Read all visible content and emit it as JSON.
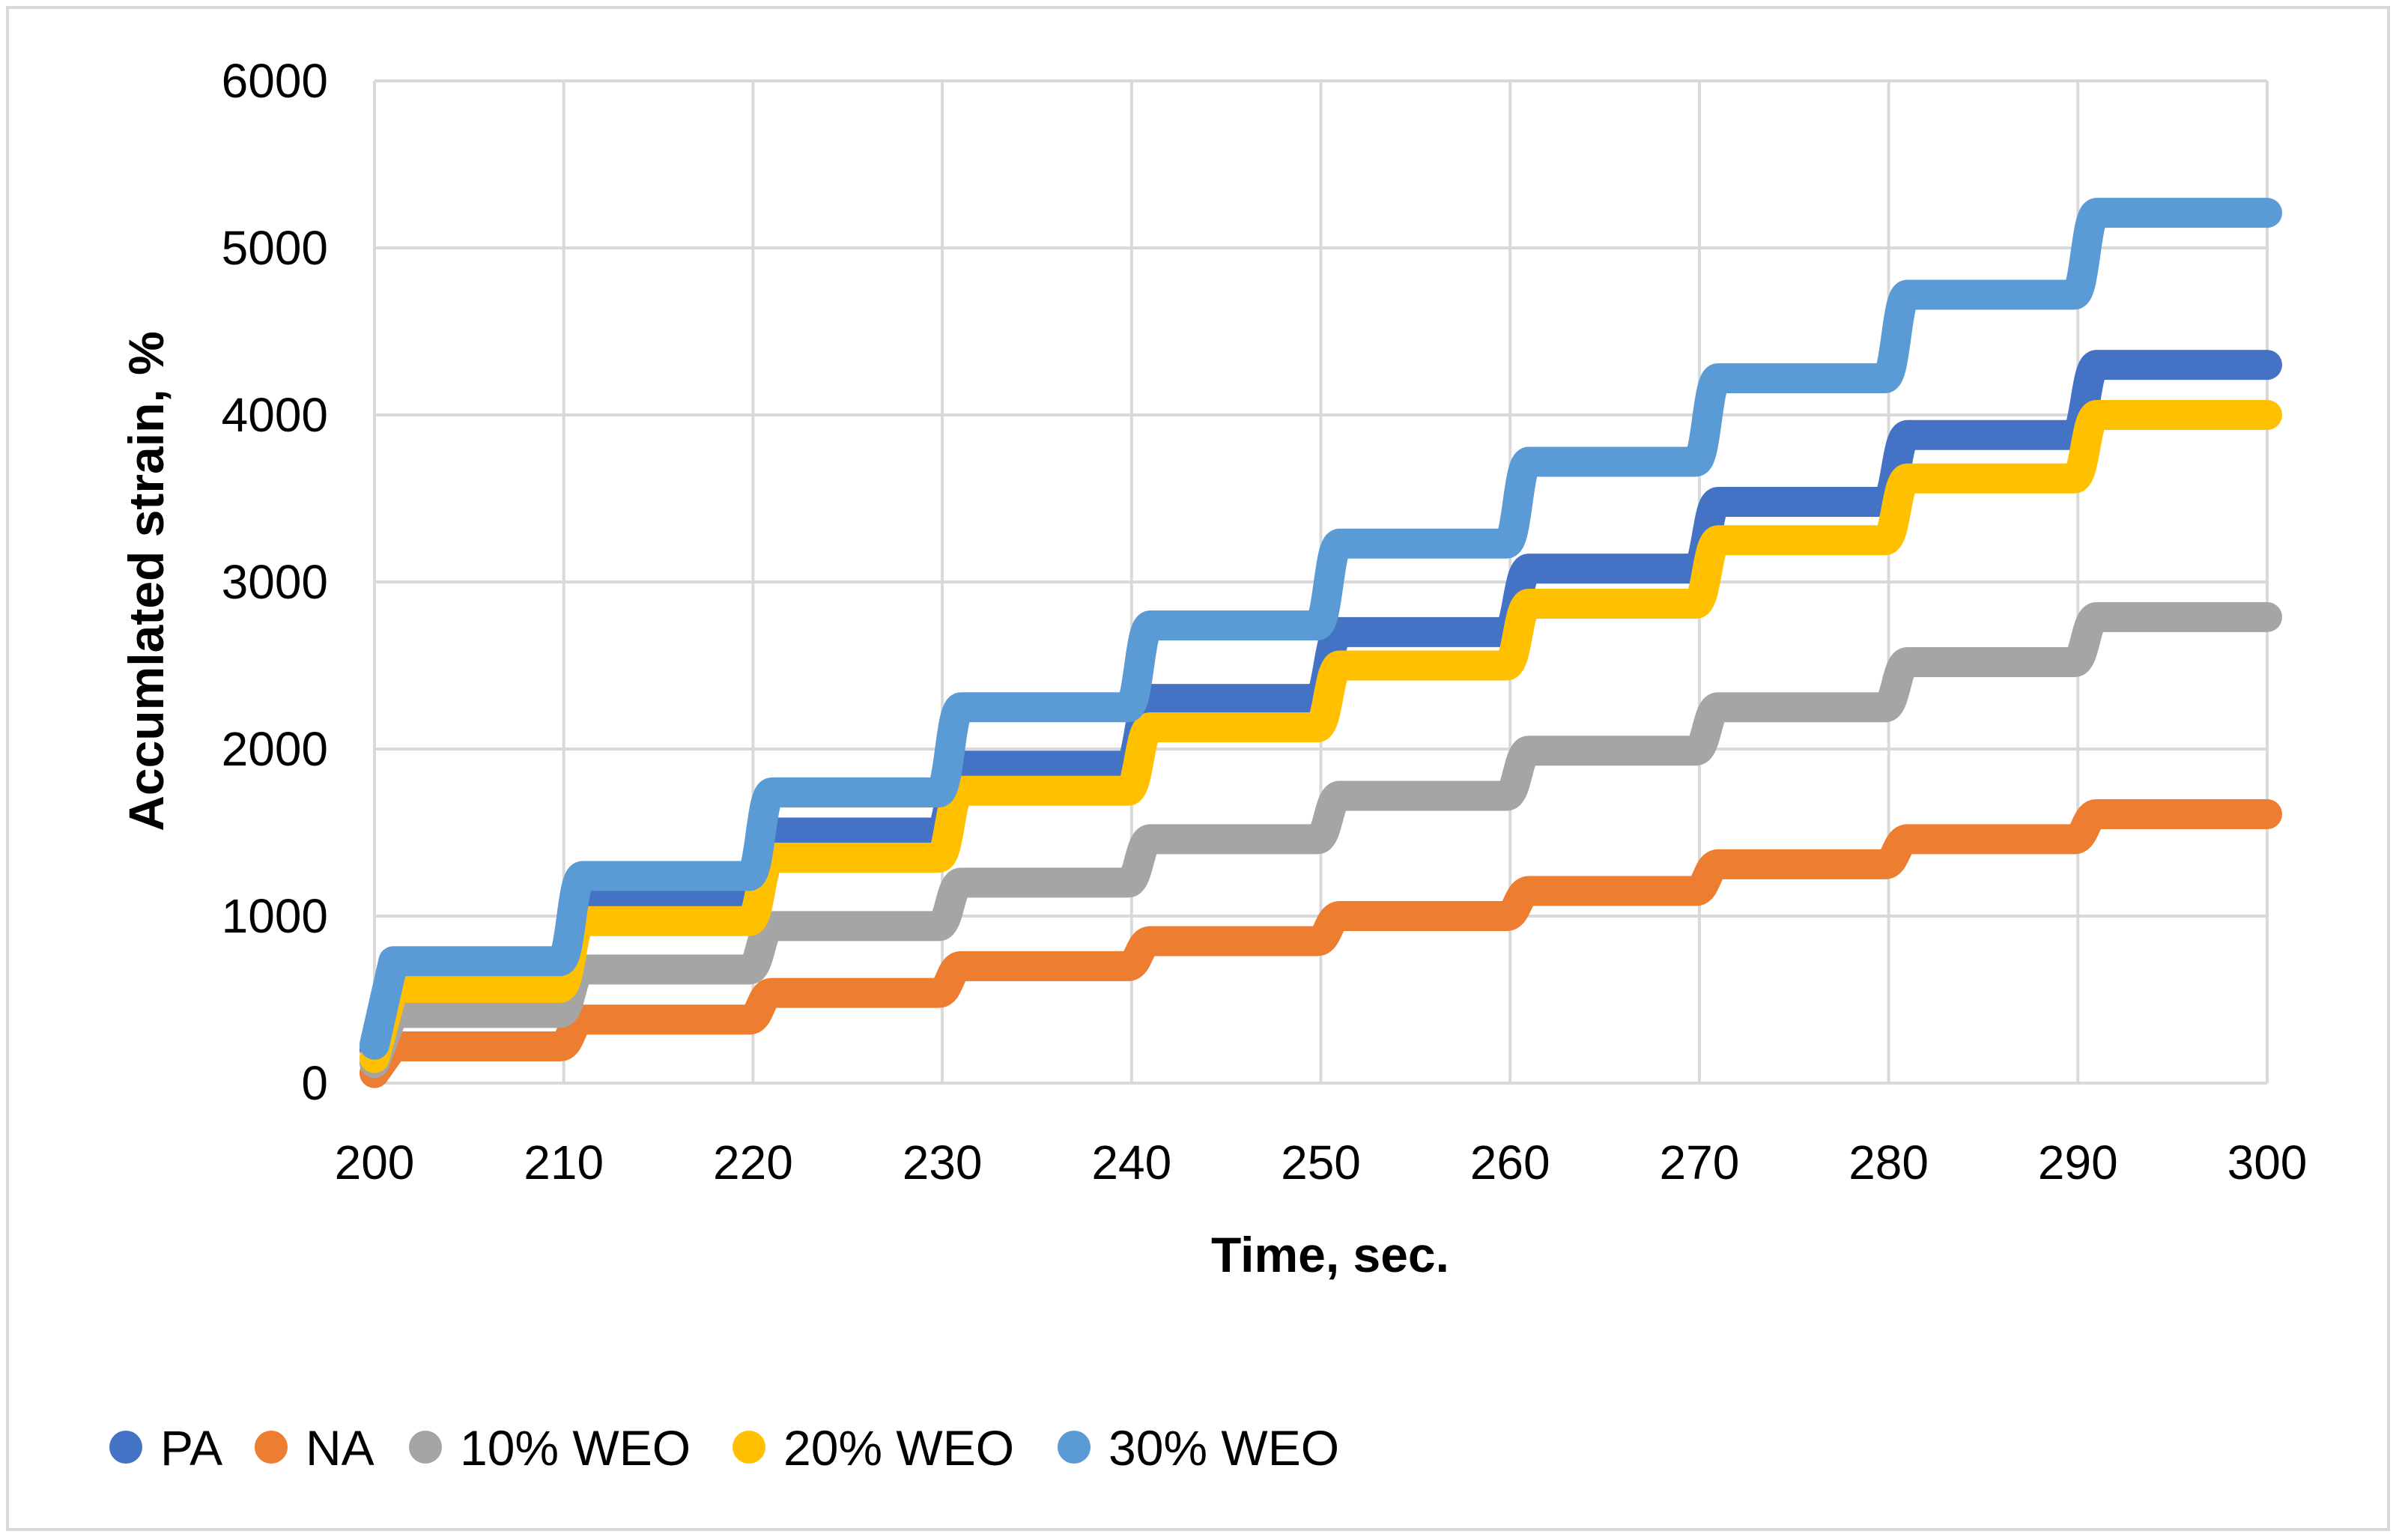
{
  "chart_data": {
    "type": "line",
    "title": "",
    "xlabel": "Time, sec.",
    "ylabel": "Accumlated strain, %",
    "xlim": [
      200,
      300
    ],
    "ylim": [
      0,
      6000
    ],
    "x_ticks": [
      200,
      210,
      220,
      230,
      240,
      250,
      260,
      270,
      280,
      290,
      300
    ],
    "y_ticks": [
      0,
      1000,
      2000,
      3000,
      4000,
      5000,
      6000
    ],
    "grid": true,
    "legend_position": "bottom",
    "series": [
      {
        "name": "PA",
        "color": "#4472c4",
        "step_times": [
          200,
          201,
          211,
          221,
          231,
          241,
          251,
          261,
          271,
          281,
          291,
          300
        ],
        "values": [
          200,
          700,
          1100,
          1500,
          1900,
          2300,
          2700,
          3080,
          3480,
          3880,
          4300,
          4300
        ]
      },
      {
        "name": "NA",
        "color": "#ed7d31",
        "step_times": [
          200,
          201,
          211,
          221,
          231,
          241,
          251,
          261,
          271,
          281,
          291,
          300
        ],
        "values": [
          60,
          220,
          380,
          540,
          700,
          850,
          1000,
          1150,
          1310,
          1460,
          1610,
          1610
        ]
      },
      {
        "name": "10% WEO",
        "color": "#a5a5a5",
        "step_times": [
          200,
          201,
          211,
          221,
          231,
          241,
          251,
          261,
          271,
          281,
          291,
          300
        ],
        "values": [
          120,
          420,
          680,
          940,
          1200,
          1460,
          1720,
          1990,
          2250,
          2520,
          2790,
          2790
        ]
      },
      {
        "name": "20% WEO",
        "color": "#ffc000",
        "step_times": [
          200,
          201,
          211,
          221,
          231,
          241,
          251,
          261,
          271,
          281,
          291,
          300
        ],
        "values": [
          150,
          570,
          970,
          1350,
          1750,
          2130,
          2500,
          2870,
          3250,
          3620,
          4000,
          4000
        ]
      },
      {
        "name": "30% WEO",
        "color": "#5b9bd5",
        "step_times": [
          200,
          201,
          211,
          221,
          231,
          241,
          251,
          261,
          271,
          281,
          291,
          300
        ],
        "values": [
          230,
          730,
          1240,
          1740,
          2250,
          2740,
          3230,
          3720,
          4220,
          4720,
          5210,
          5210
        ]
      }
    ]
  }
}
